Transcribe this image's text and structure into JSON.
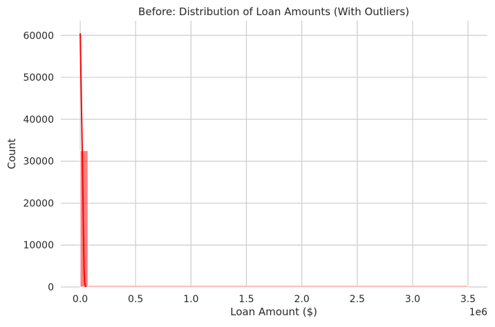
{
  "chart_data": {
    "type": "bar",
    "title": "Before: Distribution of Loan Amounts (With Outliers)",
    "xlabel": "Loan Amount ($)",
    "ylabel": "Count",
    "x_offset_label": "1e6",
    "xlim": [
      -0.175,
      3.675
    ],
    "ylim": [
      0,
      63500
    ],
    "grid": true,
    "x_ticks": [
      0.0,
      0.5,
      1.0,
      1.5,
      2.0,
      2.5,
      3.0,
      3.5
    ],
    "x_tick_labels": [
      "0.0",
      "0.5",
      "1.0",
      "1.5",
      "2.0",
      "2.5",
      "3.0",
      "3.5"
    ],
    "y_ticks": [
      0,
      10000,
      20000,
      30000,
      40000,
      50000,
      60000
    ],
    "y_tick_labels": [
      "0",
      "10000",
      "20000",
      "30000",
      "40000",
      "50000",
      "60000"
    ],
    "histogram": {
      "name": "Count",
      "color": "#ff0000",
      "bins": [
        {
          "x0": 0.0,
          "x1": 0.07,
          "count": 32500
        },
        {
          "x0": 0.07,
          "x1": 3.5,
          "count": 250
        }
      ]
    },
    "kde": {
      "name": "KDE",
      "color": "#ff0000",
      "x": [
        0.0,
        0.01,
        0.02,
        0.03,
        0.035,
        0.04,
        0.05
      ],
      "y": [
        60500,
        45000,
        30000,
        12000,
        4000,
        1000,
        0
      ]
    }
  }
}
